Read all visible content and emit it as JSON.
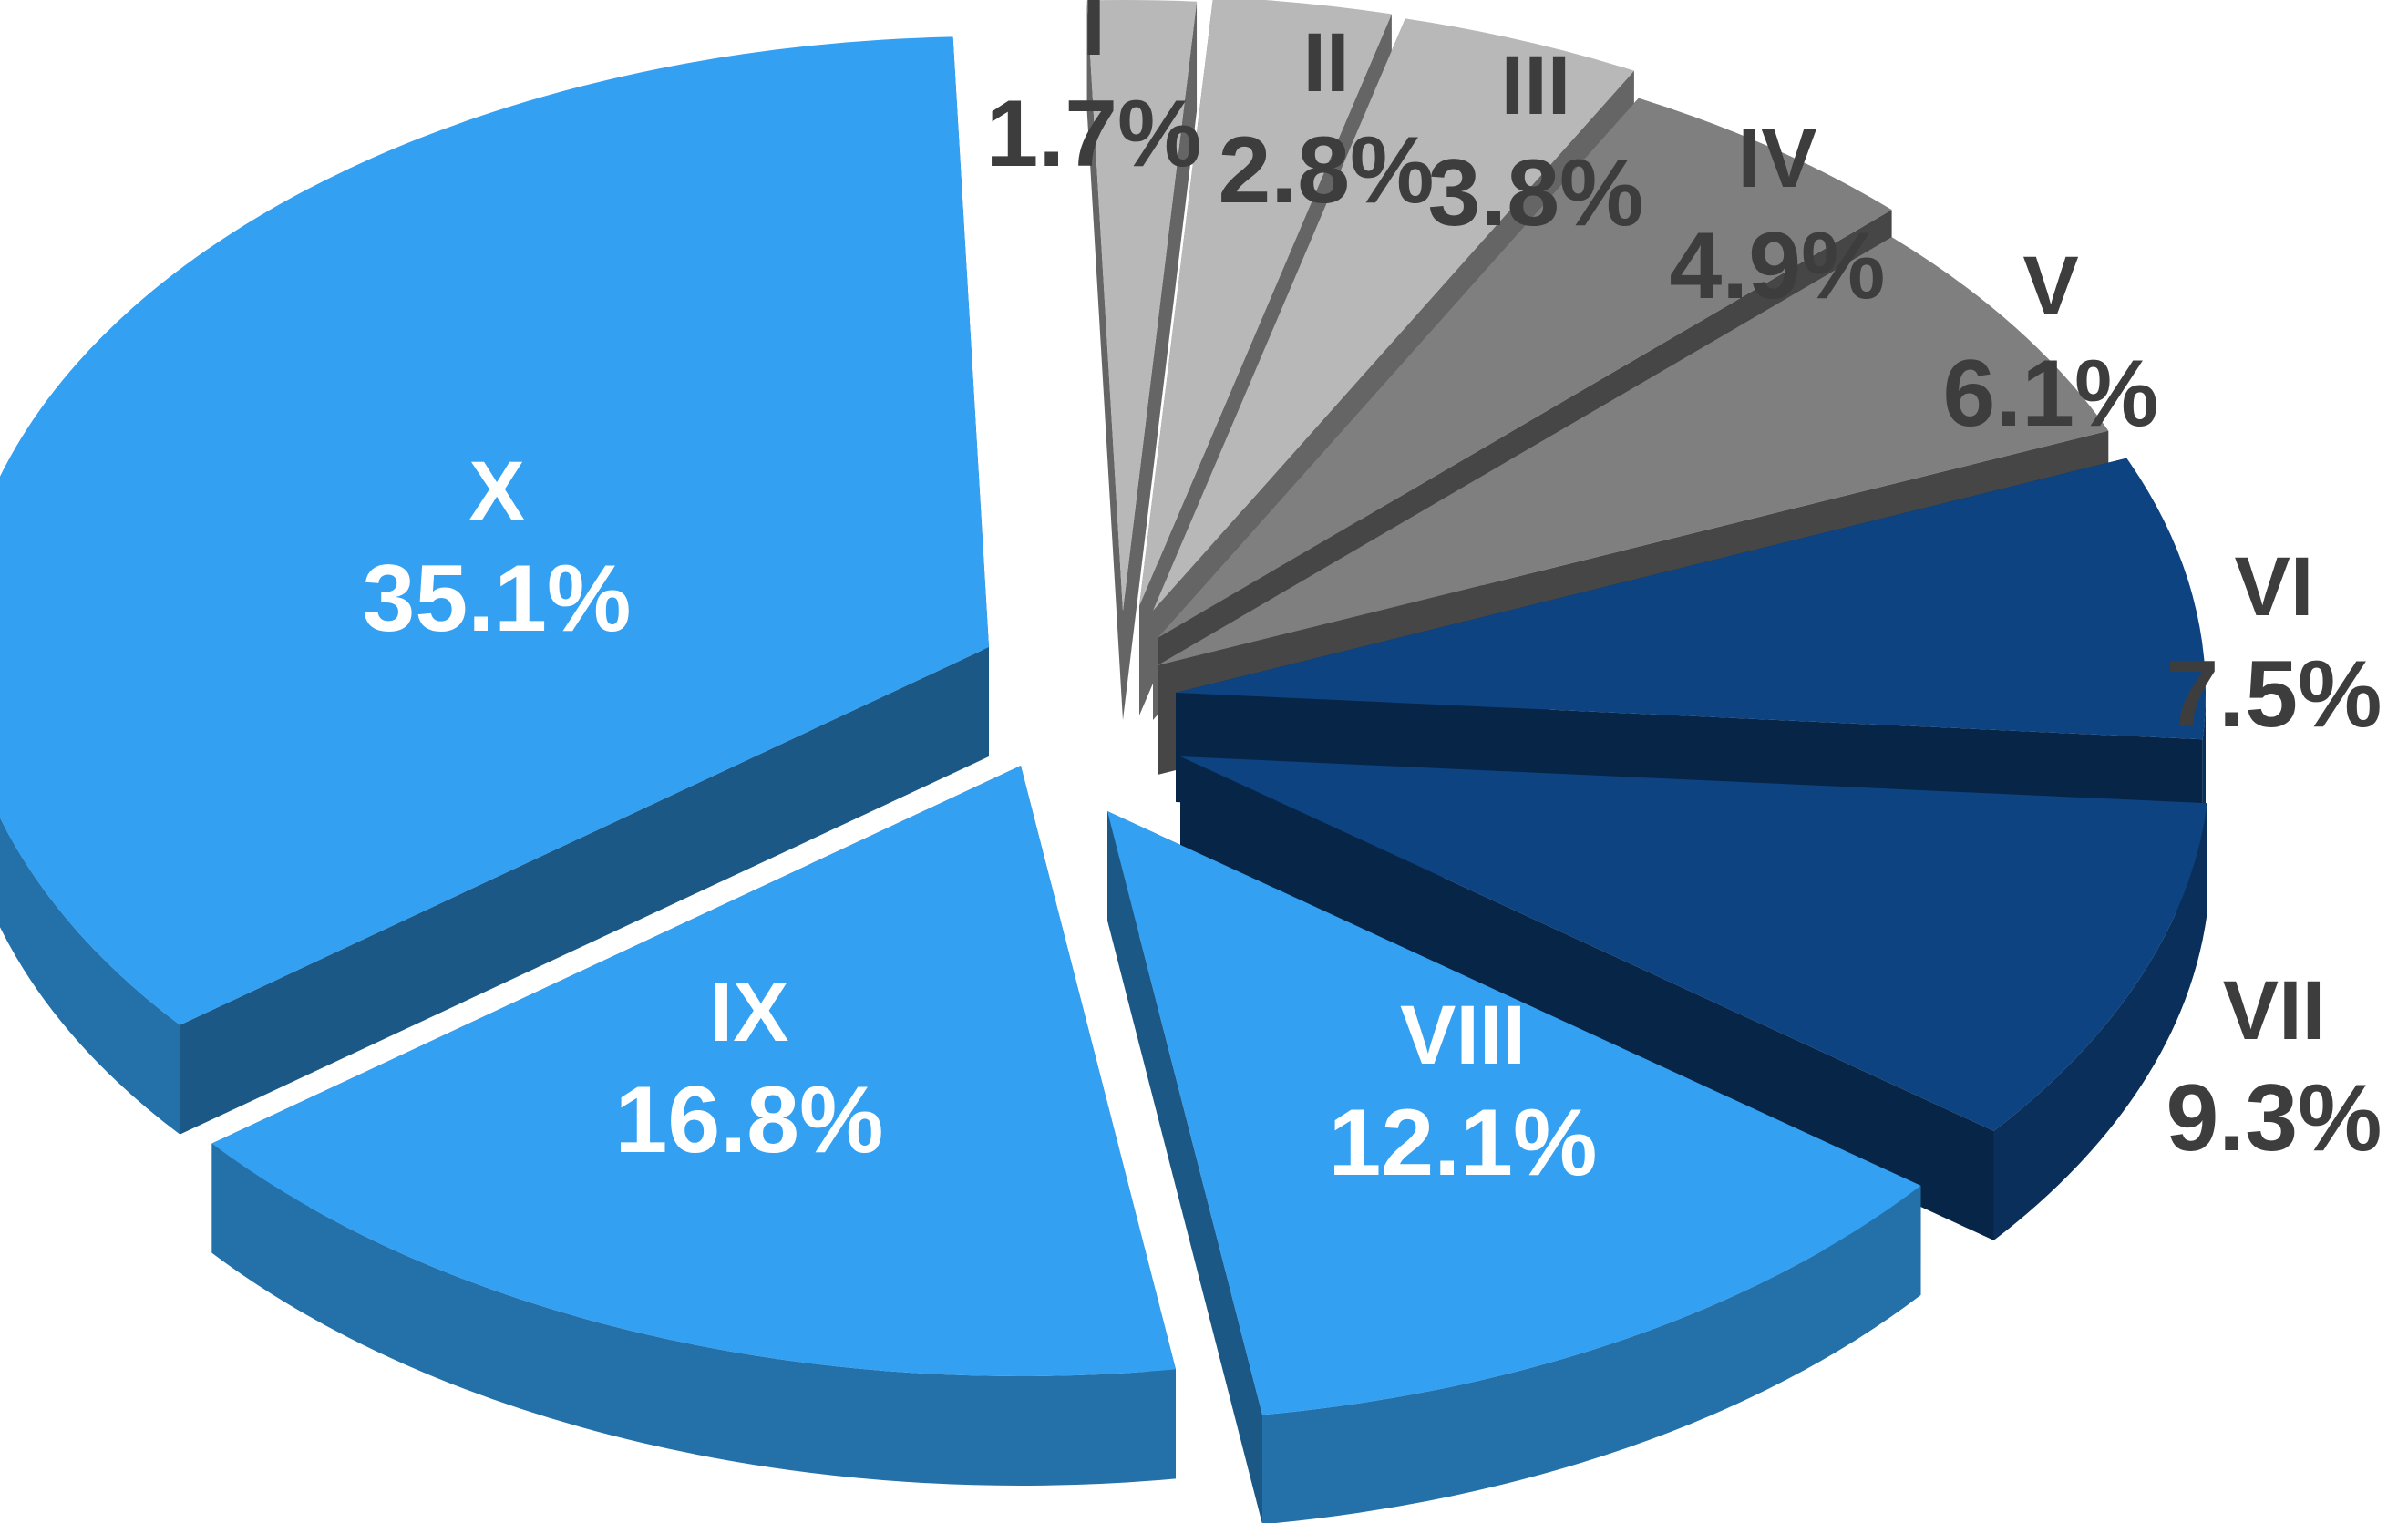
{
  "chart_data": {
    "type": "pie",
    "style": "3d-exploded",
    "slices": [
      {
        "category": "I",
        "value": 1.7,
        "label": "1.7%",
        "color": "#b8b8b8",
        "label_color": "#3d3d3d"
      },
      {
        "category": "II",
        "value": 2.8,
        "label": "2.8%",
        "color": "#b8b8b8",
        "label_color": "#3d3d3d"
      },
      {
        "category": "III",
        "value": 3.8,
        "label": "3.8%",
        "color": "#b8b8b8",
        "label_color": "#3d3d3d"
      },
      {
        "category": "IV",
        "value": 4.9,
        "label": "4.9%",
        "color": "#7f7f7f",
        "label_color": "#3d3d3d"
      },
      {
        "category": "V",
        "value": 6.1,
        "label": "6.1%",
        "color": "#7f7f7f",
        "label_color": "#3d3d3d"
      },
      {
        "category": "VI",
        "value": 7.5,
        "label": "7.5%",
        "color": "#0d4381",
        "label_color": "#3d3d3d"
      },
      {
        "category": "VII",
        "value": 9.3,
        "label": "9.3%",
        "color": "#0d4381",
        "label_color": "#3d3d3d"
      },
      {
        "category": "VIII",
        "value": 12.1,
        "label": "12.1%",
        "color": "#33a0f2",
        "label_color": "#ffffff"
      },
      {
        "category": "IX",
        "value": 16.8,
        "label": "16.8%",
        "color": "#33a0f2",
        "label_color": "#ffffff"
      },
      {
        "category": "X",
        "value": 35.1,
        "label": "35.1%",
        "color": "#33a0f2",
        "label_color": "#ffffff"
      }
    ]
  }
}
